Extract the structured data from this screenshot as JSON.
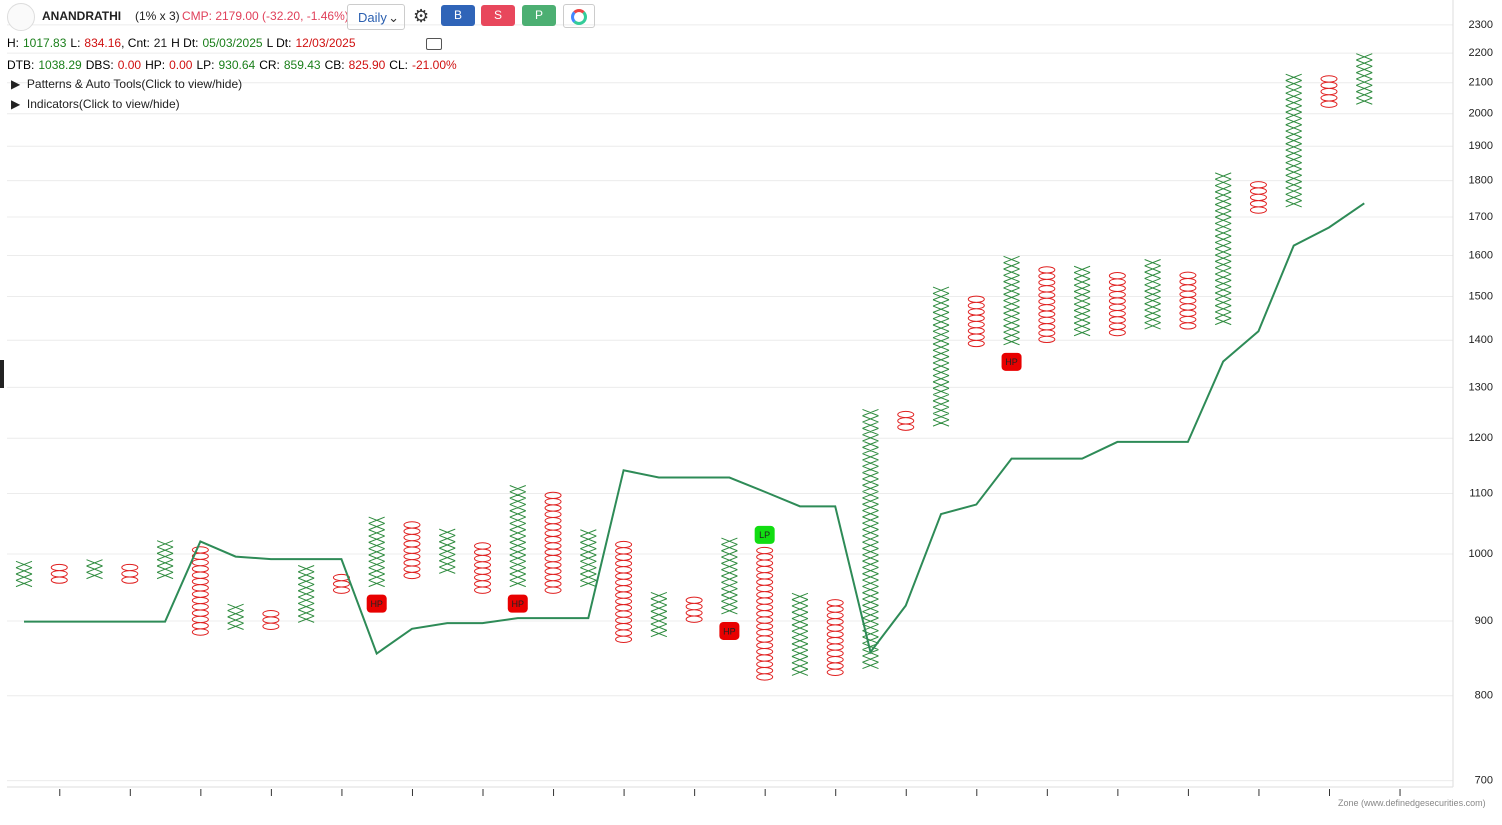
{
  "header": {
    "symbol": "ANANDRATHI",
    "box": "(1% x 3)",
    "cmp": "CMP: 2179.00 (-32.20, -1.46%)",
    "interval": "Daily",
    "buttons": [
      "B",
      "S",
      "P"
    ]
  },
  "stats": [
    [
      {
        "label": "H:",
        "value": "1017.83",
        "color": "#1a7f1a"
      },
      {
        "label": "L:",
        "value": "834.16",
        "color": "#d01010"
      },
      {
        "label": ", Cnt:",
        "value": "21",
        "color": "#222"
      },
      {
        "label": "H Dt:",
        "value": "05/03/2025",
        "color": "#1a7f1a"
      },
      {
        "label": "L Dt:",
        "value": "12/03/2025",
        "color": "#d01010"
      }
    ],
    [
      {
        "label": "DTB:",
        "value": "1038.29",
        "color": "#1a7f1a"
      },
      {
        "label": "DBS:",
        "value": "0.00",
        "color": "#d01010"
      },
      {
        "label": "HP:",
        "value": "0.00",
        "color": "#d01010"
      },
      {
        "label": "LP:",
        "value": "930.64",
        "color": "#1a7f1a"
      },
      {
        "label": "CR:",
        "value": "859.43",
        "color": "#1a7f1a"
      },
      {
        "label": "CB:",
        "value": "825.90",
        "color": "#d01010"
      },
      {
        "label": "CL:",
        "value": "-21.00%",
        "color": "#d01010"
      }
    ]
  ],
  "toggles": [
    "Patterns & Auto Tools(Click to view/hide)",
    "Indicators(Click to view/hide)"
  ],
  "footer": "Zone (www.definedgesecurities.com)",
  "chart_data": {
    "type": "pnf",
    "log_scale": true,
    "grid": true,
    "box_pct": 1,
    "x_color": "#2e8b3e",
    "o_color": "#e02020",
    "ylim": [
      693,
      2392
    ],
    "yticks": [
      700,
      800,
      900,
      1000,
      1100,
      1200,
      1300,
      1400,
      1500,
      1600,
      1700,
      1800,
      1900,
      2000,
      2100,
      2200,
      2300
    ],
    "columns": [
      {
        "type": "X",
        "low": 950,
        "high": 985
      },
      {
        "type": "O",
        "low": 955,
        "high": 975
      },
      {
        "type": "X",
        "low": 962,
        "high": 983
      },
      {
        "type": "O",
        "low": 955,
        "high": 975
      },
      {
        "type": "X",
        "low": 962,
        "high": 1015
      },
      {
        "type": "O",
        "low": 880,
        "high": 1005
      },
      {
        "type": "X",
        "low": 888,
        "high": 920
      },
      {
        "type": "O",
        "low": 888,
        "high": 910
      },
      {
        "type": "X",
        "low": 898,
        "high": 975
      },
      {
        "type": "O",
        "low": 940,
        "high": 965
      },
      {
        "type": "X",
        "low": 950,
        "high": 1057
      },
      {
        "type": "O",
        "low": 962,
        "high": 1044
      },
      {
        "type": "X",
        "low": 970,
        "high": 1030
      },
      {
        "type": "O",
        "low": 940,
        "high": 1015
      },
      {
        "type": "X",
        "low": 950,
        "high": 1110
      },
      {
        "type": "O",
        "low": 940,
        "high": 1100
      },
      {
        "type": "X",
        "low": 950,
        "high": 1030
      },
      {
        "type": "O",
        "low": 870,
        "high": 1013
      },
      {
        "type": "X",
        "low": 878,
        "high": 937
      },
      {
        "type": "O",
        "low": 898,
        "high": 927
      },
      {
        "type": "X",
        "low": 910,
        "high": 1015
      },
      {
        "type": "O",
        "low": 820,
        "high": 1005
      },
      {
        "type": "X",
        "low": 826,
        "high": 937
      },
      {
        "type": "O",
        "low": 826,
        "high": 927
      },
      {
        "type": "X",
        "low": 835,
        "high": 1253
      },
      {
        "type": "O",
        "low": 1215,
        "high": 1240
      },
      {
        "type": "X",
        "low": 1223,
        "high": 1511
      },
      {
        "type": "O",
        "low": 1386,
        "high": 1497
      },
      {
        "type": "X",
        "low": 1390,
        "high": 1588
      },
      {
        "type": "O",
        "low": 1395,
        "high": 1570
      },
      {
        "type": "X",
        "low": 1410,
        "high": 1558
      },
      {
        "type": "O",
        "low": 1410,
        "high": 1545
      },
      {
        "type": "X",
        "low": 1425,
        "high": 1574
      },
      {
        "type": "O",
        "low": 1425,
        "high": 1555
      },
      {
        "type": "X",
        "low": 1435,
        "high": 1810
      },
      {
        "type": "O",
        "low": 1710,
        "high": 1793
      },
      {
        "type": "X",
        "low": 1727,
        "high": 2122
      },
      {
        "type": "O",
        "low": 2020,
        "high": 2100
      },
      {
        "type": "X",
        "low": 2030,
        "high": 2190
      }
    ],
    "signals": [
      null,
      null,
      null,
      null,
      null,
      null,
      null,
      null,
      null,
      null,
      "HP",
      null,
      null,
      null,
      "HP",
      null,
      null,
      null,
      null,
      null,
      "HP",
      "LP",
      null,
      null,
      null,
      null,
      null,
      null,
      "HP",
      null,
      null,
      null,
      null,
      null,
      null,
      null,
      null,
      null,
      null
    ],
    "line": {
      "color": "#2e8b57",
      "values": [
        899,
        899,
        899,
        899,
        899,
        1020,
        996,
        992,
        992,
        992,
        855,
        889,
        897,
        897,
        904,
        904,
        904,
        1141,
        1128,
        1128,
        1128,
        1103,
        1078,
        1078,
        857,
        922,
        1065,
        1081,
        1162,
        1162,
        1162,
        1193,
        1193,
        1193,
        1354,
        1420,
        1625,
        1672,
        1737
      ]
    }
  }
}
